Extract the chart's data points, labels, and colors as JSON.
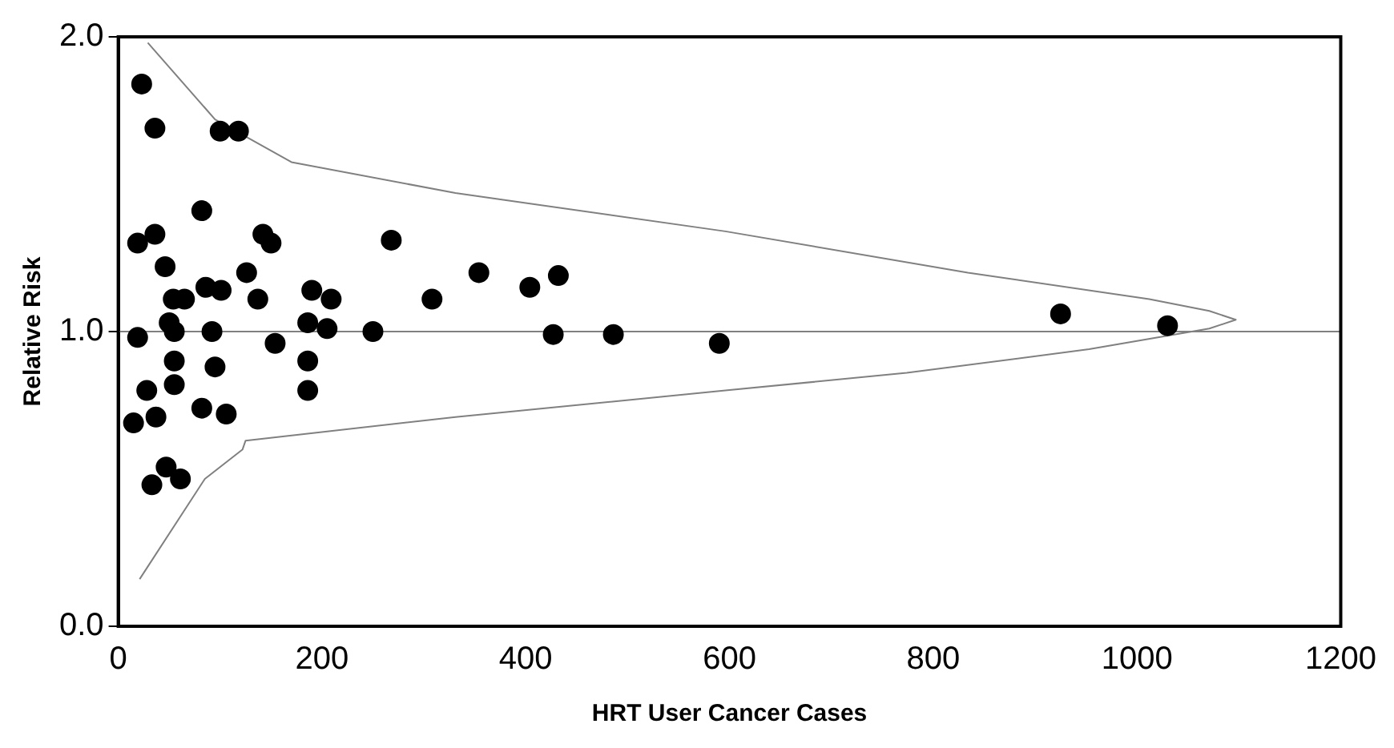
{
  "chart_data": {
    "type": "scatter",
    "xlabel": "HRT User Cancer Cases",
    "ylabel": "Relative Risk",
    "xlim": [
      0,
      1200
    ],
    "xticks": [
      0,
      200,
      400,
      600,
      800,
      1000,
      1200
    ],
    "ylim": [
      0,
      2
    ],
    "yticks": [
      {
        "value": 0,
        "label": "0.0"
      },
      {
        "value": 1,
        "label": "1.0"
      },
      {
        "value": 2,
        "label": "2.0"
      }
    ],
    "grid": false,
    "legend": false,
    "marker": "circle",
    "ref_lines": [
      {
        "axis": "y",
        "value": 1,
        "color": "#808080"
      }
    ],
    "series": [
      {
        "color": "#000000",
        "x": [
          23,
          36,
          100,
          118,
          19,
          36,
          82,
          142,
          150,
          46,
          126,
          86,
          101,
          54,
          65,
          137,
          190,
          209,
          268,
          308,
          19,
          50,
          55,
          92,
          186,
          205,
          250,
          154,
          55,
          95,
          186,
          28,
          55,
          186,
          15,
          37,
          82,
          106,
          33,
          47,
          61,
          354,
          404,
          432,
          427,
          486,
          590,
          925,
          1030
        ],
        "values": [
          1.84,
          1.69,
          1.68,
          1.68,
          1.3,
          1.33,
          1.41,
          1.33,
          1.3,
          1.22,
          1.2,
          1.15,
          1.14,
          1.11,
          1.11,
          1.11,
          1.14,
          1.11,
          1.31,
          1.11,
          0.98,
          1.03,
          1.0,
          1.0,
          1.03,
          1.01,
          1.0,
          0.96,
          0.9,
          0.88,
          0.9,
          0.8,
          0.82,
          0.8,
          0.69,
          0.71,
          0.74,
          0.72,
          0.48,
          0.54,
          0.5,
          1.2,
          1.15,
          1.19,
          0.99,
          0.99,
          0.96,
          1.06,
          1.02
        ]
      },
      {
        "type": "line",
        "color": "#808080",
        "marker": "none",
        "x": [
          29,
          95,
          170,
          331,
          596,
          834,
          1012,
          1071,
          1097,
          1071,
          953,
          774,
          596,
          331,
          125,
          122,
          85,
          21
        ],
        "values": [
          1.98,
          1.72,
          1.575,
          1.47,
          1.34,
          1.2,
          1.11,
          1.07,
          1.04,
          1.01,
          0.94,
          0.86,
          0.8,
          0.71,
          0.63,
          0.6,
          0.5,
          0.16
        ]
      }
    ]
  }
}
